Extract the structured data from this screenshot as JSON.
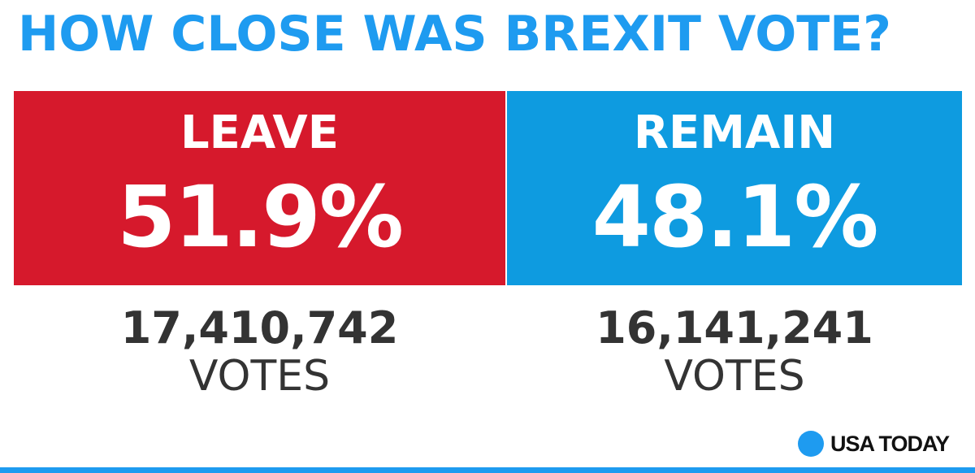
{
  "title": "HOW CLOSE WAS BREXIT VOTE?",
  "colors": {
    "title": "#1e9bf0",
    "leave": "#d6192c",
    "remain": "#0e9be0",
    "brand_dot": "#1e9bf0",
    "rule": "#1e9bf0"
  },
  "chart_data": {
    "type": "bar",
    "title": "HOW CLOSE WAS BREXIT VOTE?",
    "categories": [
      "LEAVE",
      "REMAIN"
    ],
    "values": [
      51.9,
      48.1
    ],
    "value_labels": [
      "51.9%",
      "48.1%"
    ],
    "votes": [
      17410742,
      16141241
    ],
    "vote_labels": [
      "17,410,742",
      "16,141,241"
    ],
    "vote_unit": "VOTES",
    "colors": [
      "#d6192c",
      "#0e9be0"
    ],
    "grid": false,
    "legend": "none"
  },
  "brand": {
    "name": "USA TODAY",
    "icon": "blue-circle-icon"
  }
}
